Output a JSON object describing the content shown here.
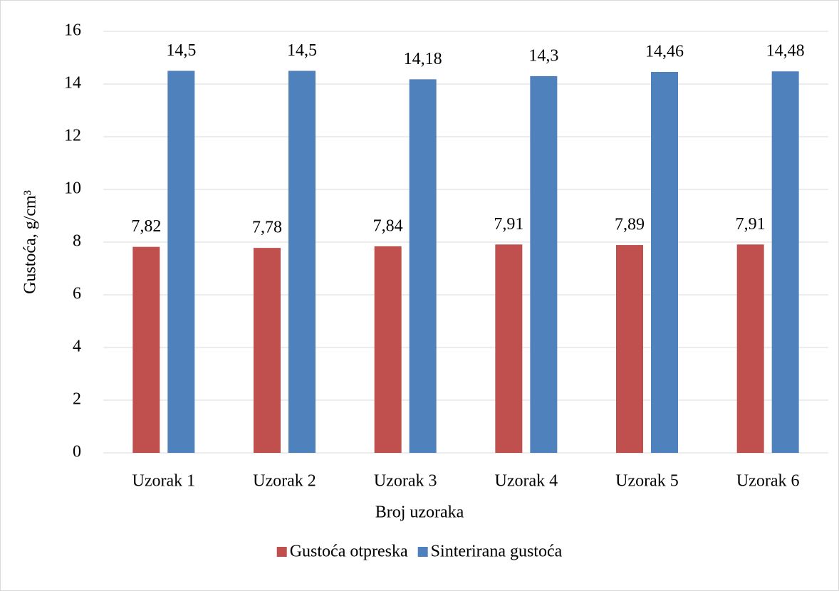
{
  "chart_data": {
    "type": "bar",
    "categories": [
      "Uzorak 1",
      "Uzorak 2",
      "Uzorak 3",
      "Uzorak 4",
      "Uzorak 5",
      "Uzorak 6"
    ],
    "series": [
      {
        "name": "Gustoća otpreska",
        "color": "#c0504d",
        "values": [
          7.82,
          7.78,
          7.84,
          7.91,
          7.89,
          7.91
        ],
        "value_labels": [
          "7,82",
          "7,78",
          "7,84",
          "7,91",
          "7,89",
          "7,91"
        ]
      },
      {
        "name": "Sinterirana gustoća",
        "color": "#4f81bd",
        "values": [
          14.5,
          14.5,
          14.18,
          14.3,
          14.46,
          14.48
        ],
        "value_labels": [
          "14,5",
          "14,5",
          "14,18",
          "14,3",
          "14,46",
          "14,48"
        ]
      }
    ],
    "x_label": "Broj uzoraka",
    "y_label": "Gustoća, g/cm³",
    "ylim": [
      0,
      16
    ],
    "yticks": [
      0,
      2,
      4,
      6,
      8,
      10,
      12,
      14,
      16
    ],
    "grid": true,
    "legend": "bottom"
  }
}
